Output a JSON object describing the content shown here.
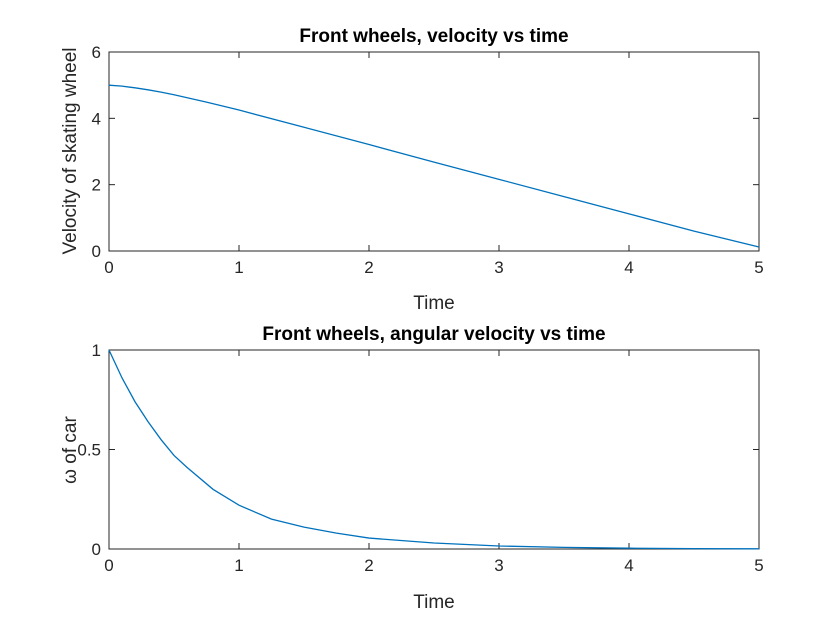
{
  "chart_data": [
    {
      "type": "line",
      "title": "Front wheels, velocity vs time",
      "xlabel": "Time",
      "ylabel": "Velocity of skating wheel",
      "xlim": [
        0,
        5
      ],
      "ylim": [
        0,
        6
      ],
      "xticks": [
        "0",
        "1",
        "2",
        "3",
        "4",
        "5"
      ],
      "yticks": [
        "0",
        "2",
        "4",
        "6"
      ],
      "grid": false,
      "color": "#0072bd",
      "x": [
        0,
        0.1,
        0.2,
        0.3,
        0.4,
        0.5,
        0.75,
        1,
        1.5,
        2,
        2.5,
        3,
        3.5,
        4,
        4.5,
        5
      ],
      "y": [
        5.0,
        4.97,
        4.92,
        4.86,
        4.79,
        4.71,
        4.49,
        4.25,
        3.73,
        3.21,
        2.68,
        2.16,
        1.64,
        1.12,
        0.6,
        0.12
      ]
    },
    {
      "type": "line",
      "title": "Front wheels, angular velocity vs time",
      "xlabel": "Time",
      "ylabel": "ω of car",
      "xlim": [
        0,
        5
      ],
      "ylim": [
        0,
        1
      ],
      "xticks": [
        "0",
        "1",
        "2",
        "3",
        "4",
        "5"
      ],
      "yticks": [
        "0",
        "0.5",
        "1"
      ],
      "grid": false,
      "color": "#0072bd",
      "x": [
        0,
        0.1,
        0.2,
        0.3,
        0.4,
        0.5,
        0.6,
        0.8,
        1,
        1.25,
        1.5,
        1.75,
        2,
        2.5,
        3,
        3.5,
        4,
        4.5,
        5
      ],
      "y": [
        1.0,
        0.86,
        0.74,
        0.64,
        0.55,
        0.47,
        0.41,
        0.3,
        0.22,
        0.15,
        0.11,
        0.08,
        0.055,
        0.03,
        0.015,
        0.008,
        0.004,
        0.002,
        0.001
      ]
    }
  ]
}
